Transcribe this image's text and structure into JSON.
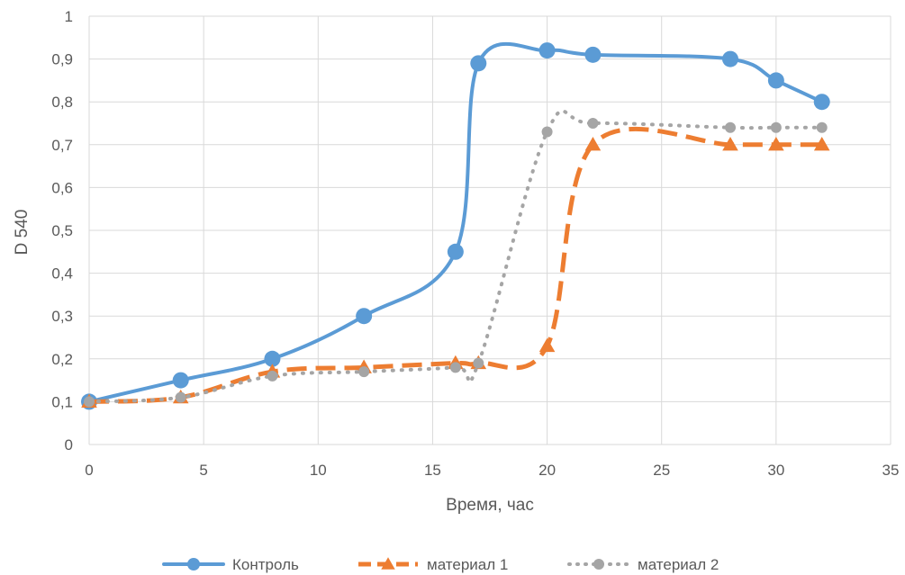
{
  "chart_data": {
    "type": "line",
    "title": "",
    "xlabel": "Время, час",
    "ylabel": "D 540",
    "xlim": [
      0,
      35
    ],
    "ylim": [
      0,
      1
    ],
    "x_ticks": [
      0,
      5,
      10,
      15,
      20,
      25,
      30,
      35
    ],
    "y_ticks": [
      0,
      0.1,
      0.2,
      0.3,
      0.4,
      0.5,
      0.6,
      0.7,
      0.8,
      0.9,
      1
    ],
    "x_tick_labels": [
      "0",
      "5",
      "10",
      "15",
      "20",
      "25",
      "30",
      "35"
    ],
    "y_tick_labels": [
      "0",
      "0,1",
      "0,2",
      "0,3",
      "0,4",
      "0,5",
      "0,6",
      "0,7",
      "0,8",
      "0,9",
      "1"
    ],
    "grid": true,
    "legend_position": "bottom",
    "series": [
      {
        "name": "Контроль",
        "color": "#5b9bd5",
        "line_style": "solid",
        "marker": "circle",
        "x": [
          0,
          4,
          8,
          12,
          16,
          17,
          20,
          22,
          28,
          30,
          32
        ],
        "y": [
          0.1,
          0.15,
          0.2,
          0.3,
          0.45,
          0.89,
          0.92,
          0.91,
          0.9,
          0.85,
          0.8
        ]
      },
      {
        "name": "материал 1",
        "color": "#ed7d31",
        "line_style": "dashed",
        "marker": "triangle",
        "x": [
          0,
          4,
          8,
          12,
          16,
          17,
          20,
          22,
          28,
          30,
          32
        ],
        "y": [
          0.1,
          0.11,
          0.17,
          0.18,
          0.19,
          0.19,
          0.23,
          0.7,
          0.7,
          0.7,
          0.7
        ]
      },
      {
        "name": "материал 2",
        "color": "#a5a5a5",
        "line_style": "dotted",
        "marker": "circle",
        "x": [
          0,
          4,
          8,
          12,
          16,
          17,
          20,
          22,
          28,
          30,
          32
        ],
        "y": [
          0.1,
          0.11,
          0.16,
          0.17,
          0.18,
          0.19,
          0.73,
          0.75,
          0.74,
          0.74,
          0.74
        ]
      }
    ]
  }
}
